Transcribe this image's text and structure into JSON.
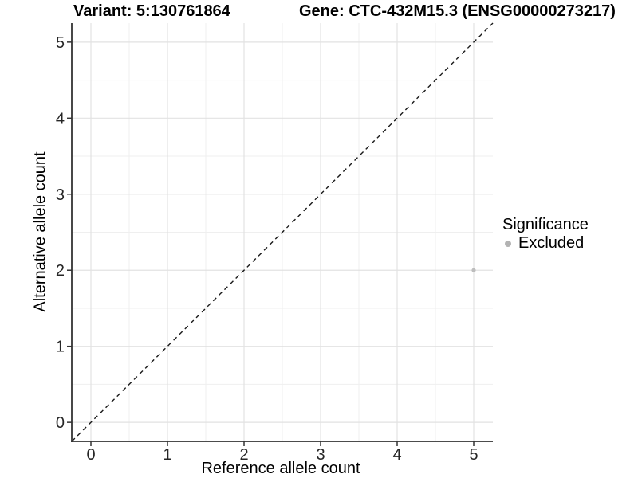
{
  "chart_data": {
    "type": "scatter",
    "titles": {
      "left": "Variant: 5:130761864",
      "right": "Gene: CTC-432M15.3 (ENSG00000273217)"
    },
    "xlabel": "Reference allele count",
    "ylabel": "Alternative allele count",
    "xlim": [
      -0.25,
      5.25
    ],
    "ylim": [
      -0.25,
      5.25
    ],
    "x_ticks": [
      0,
      1,
      2,
      3,
      4,
      5
    ],
    "y_ticks": [
      0,
      1,
      2,
      3,
      4,
      5
    ],
    "minor_ticks": [
      0.5,
      1.5,
      2.5,
      3.5,
      4.5
    ],
    "grid": "on",
    "identity_line": {
      "style": "dashed",
      "color": "#1a1a1a"
    },
    "series": [
      {
        "name": "Excluded",
        "color": "#bdbdbd",
        "points": [
          {
            "x": 5,
            "y": 2
          }
        ]
      }
    ],
    "legend": {
      "position": "right",
      "title": "Significance",
      "entries": [
        {
          "label": "Excluded",
          "color": "#b3b3b3"
        }
      ]
    },
    "colors": {
      "background": "#ffffff",
      "grid_major": "#e2e2e2",
      "grid_minor": "#efefef",
      "axis_line": "#333333",
      "tick_text": "#262626"
    }
  }
}
